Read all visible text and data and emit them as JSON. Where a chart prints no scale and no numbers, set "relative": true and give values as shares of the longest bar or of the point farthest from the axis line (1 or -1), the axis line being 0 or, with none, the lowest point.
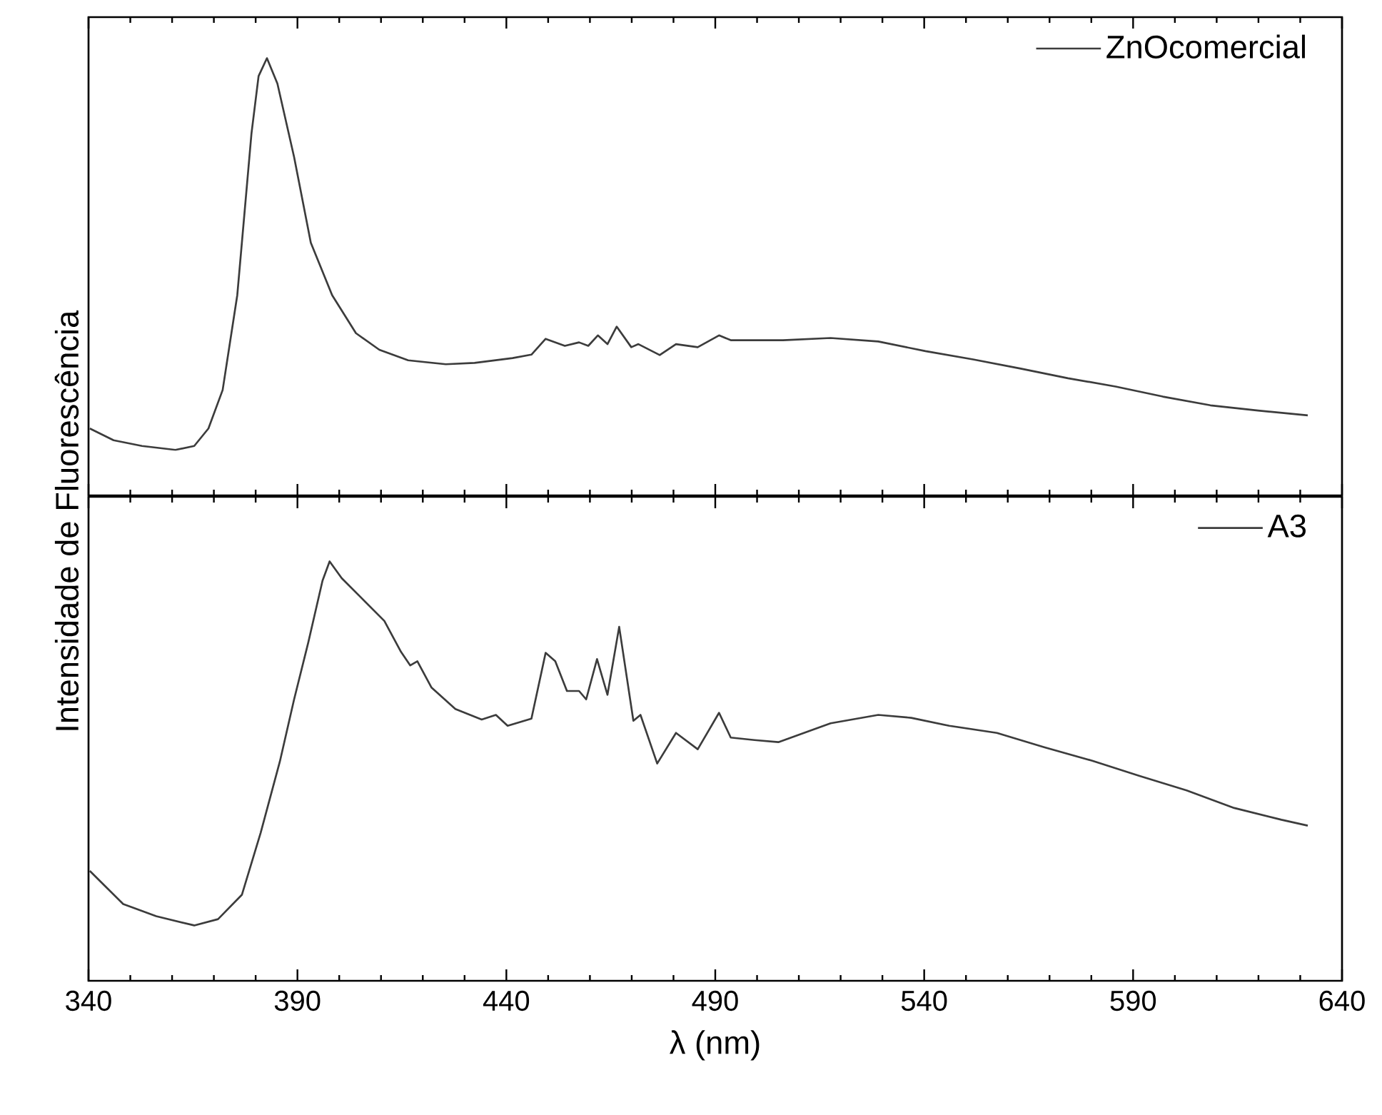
{
  "chart_data": [
    {
      "type": "line",
      "relative": true,
      "xlim": [
        340,
        640
      ],
      "xticks": [
        340,
        390,
        440,
        490,
        540,
        590,
        640
      ],
      "tick_labels": false,
      "legend": "top right",
      "series": [
        {
          "name": "ZnOcomercial",
          "color": "#3c3c3c",
          "x": [
            340.3,
            346,
            352.8,
            360.8,
            365.3,
            368.7,
            372.1,
            375.6,
            379,
            380.7,
            382.7,
            385.2,
            389.2,
            393.2,
            398.3,
            404,
            409.6,
            416.5,
            425.5,
            432.4,
            441.5,
            446,
            449.4,
            454,
            457.4,
            459.6,
            461.9,
            464.2,
            466.4,
            469.9,
            471.6,
            476.7,
            480.6,
            485.8,
            490.9,
            493.7,
            506.2,
            517.6,
            529,
            540.3,
            551.7,
            563.1,
            574.4,
            585.8,
            597.1,
            608.5,
            619.9,
            631.8
          ],
          "values": [
            0.153,
            0.126,
            0.113,
            0.104,
            0.113,
            0.153,
            0.241,
            0.458,
            0.828,
            0.959,
            1.0,
            0.942,
            0.774,
            0.578,
            0.458,
            0.371,
            0.333,
            0.309,
            0.3,
            0.303,
            0.314,
            0.322,
            0.358,
            0.342,
            0.35,
            0.342,
            0.366,
            0.346,
            0.386,
            0.339,
            0.346,
            0.321,
            0.346,
            0.339,
            0.366,
            0.355,
            0.355,
            0.36,
            0.352,
            0.33,
            0.311,
            0.29,
            0.268,
            0.249,
            0.226,
            0.206,
            0.194,
            0.183
          ]
        }
      ]
    },
    {
      "type": "line",
      "relative": true,
      "xlim": [
        340,
        640
      ],
      "xticks": [
        340,
        390,
        440,
        490,
        540,
        590,
        640
      ],
      "tick_labels": "x",
      "legend": "top right",
      "xlabel": "λ (nm)",
      "ylabel": "Intensidade de Fluorescência",
      "series": [
        {
          "name": "A3",
          "color": "#3c3c3c",
          "x": [
            340.3,
            348.3,
            356.2,
            365.3,
            371,
            376.7,
            381.2,
            385.8,
            389.2,
            392.6,
            396,
            397.7,
            400.6,
            405.1,
            410.8,
            414.8,
            417,
            418.7,
            422.1,
            427.8,
            434.1,
            437.5,
            440.3,
            446,
            449.4,
            451.7,
            454.5,
            457.4,
            459.1,
            461.7,
            464.2,
            467,
            470.4,
            472.1,
            476.1,
            480.6,
            485.8,
            490.9,
            493.7,
            499.4,
            505.1,
            517.6,
            529,
            536.9,
            546,
            557.4,
            568.7,
            580.1,
            591.4,
            602.8,
            614.2,
            625.5,
            631.8
          ],
          "values": [
            0.262,
            0.183,
            0.154,
            0.132,
            0.147,
            0.205,
            0.353,
            0.523,
            0.671,
            0.807,
            0.954,
            1.0,
            0.96,
            0.915,
            0.858,
            0.784,
            0.752,
            0.762,
            0.699,
            0.648,
            0.623,
            0.634,
            0.608,
            0.625,
            0.782,
            0.762,
            0.691,
            0.691,
            0.671,
            0.767,
            0.682,
            0.844,
            0.62,
            0.634,
            0.518,
            0.591,
            0.552,
            0.639,
            0.58,
            0.574,
            0.569,
            0.614,
            0.634,
            0.627,
            0.608,
            0.591,
            0.557,
            0.525,
            0.489,
            0.454,
            0.412,
            0.384,
            0.37
          ]
        }
      ]
    }
  ]
}
